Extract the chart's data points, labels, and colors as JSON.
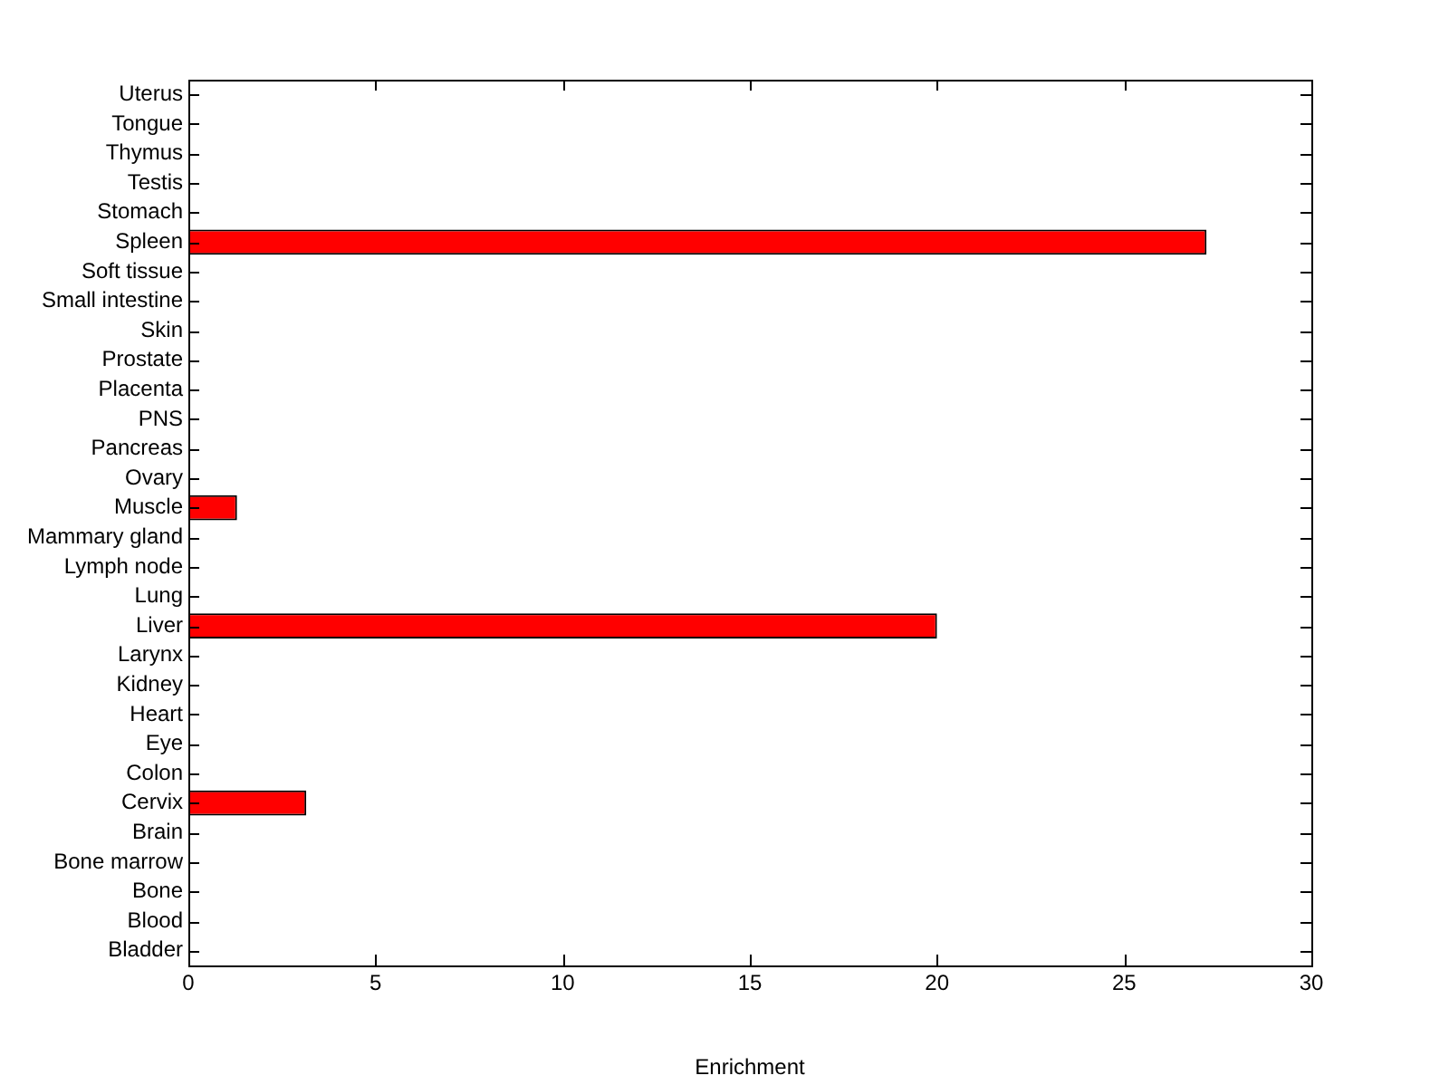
{
  "chart_data": {
    "type": "bar",
    "orientation": "horizontal",
    "xlabel": "Enrichment",
    "categories": [
      "Uterus",
      "Tongue",
      "Thymus",
      "Testis",
      "Stomach",
      "Spleen",
      "Soft tissue",
      "Small intestine",
      "Skin",
      "Prostate",
      "Placenta",
      "PNS",
      "Pancreas",
      "Ovary",
      "Muscle",
      "Mammary gland",
      "Lymph node",
      "Lung",
      "Liver",
      "Larynx",
      "Kidney",
      "Heart",
      "Eye",
      "Colon",
      "Cervix",
      "Brain",
      "Bone marrow",
      "Bone",
      "Blood",
      "Bladder"
    ],
    "values": [
      0,
      0,
      0,
      0,
      0,
      27.2,
      0,
      0,
      0,
      0,
      0,
      0,
      0,
      0,
      1.3,
      0,
      0,
      0,
      20,
      0,
      0,
      0,
      0,
      0,
      3.15,
      0,
      0,
      0,
      0,
      0
    ],
    "color": "#ff0000",
    "xlim": [
      0,
      30
    ],
    "xticks": [
      0,
      5,
      10,
      15,
      20,
      25,
      30
    ],
    "grid": false,
    "legend": false
  }
}
